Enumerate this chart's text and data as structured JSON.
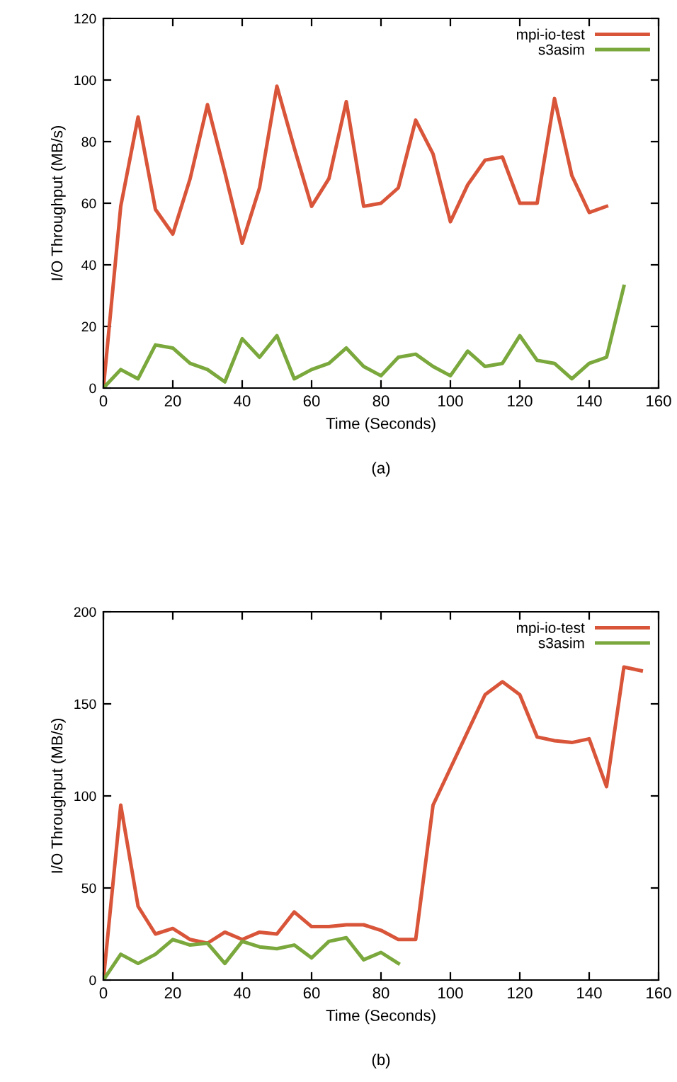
{
  "chart_data": [
    {
      "type": "line",
      "xlabel": "Time (Seconds)",
      "ylabel": "I/O Throughput (MB/s)",
      "annotations": [
        "(a)"
      ],
      "legend": "top right",
      "grid": false,
      "xlim": [
        0,
        160
      ],
      "ylim": [
        0,
        120
      ],
      "xticks": [
        0,
        20,
        40,
        60,
        80,
        100,
        120,
        140,
        160
      ],
      "yticks": [
        0,
        20,
        40,
        60,
        80,
        100,
        120
      ],
      "series": [
        {
          "name": "mpi-io-test",
          "color": "#d9553a",
          "x": [
            0,
            5,
            10,
            15,
            20,
            25,
            30,
            35,
            40,
            45,
            50,
            55,
            60,
            65,
            70,
            75,
            80,
            85,
            90,
            95,
            100,
            105,
            110,
            115,
            120,
            125,
            130,
            135,
            140,
            145
          ],
          "values": [
            0,
            59,
            88,
            58,
            50,
            68,
            92,
            70,
            47,
            65,
            98,
            78,
            59,
            68,
            93,
            59,
            60,
            65,
            87,
            76,
            54,
            66,
            74,
            75,
            60,
            60,
            94,
            69,
            57,
            59
          ]
        },
        {
          "name": "s3asim",
          "color": "#7aa83c",
          "x": [
            0,
            5,
            10,
            15,
            20,
            25,
            30,
            35,
            40,
            45,
            50,
            55,
            60,
            65,
            70,
            75,
            80,
            85,
            90,
            95,
            100,
            105,
            110,
            115,
            120,
            125,
            130,
            135,
            140,
            145,
            150
          ],
          "values": [
            0,
            6,
            3,
            14,
            13,
            8,
            6,
            2,
            16,
            10,
            17,
            3,
            6,
            8,
            13,
            7,
            4,
            10,
            11,
            7,
            4,
            12,
            7,
            8,
            17,
            9,
            8,
            3,
            8,
            10,
            33
          ]
        }
      ]
    },
    {
      "type": "line",
      "xlabel": "Time (Seconds)",
      "ylabel": "I/O Throughput (MB/s)",
      "annotations": [
        "(b)"
      ],
      "legend": "top right",
      "grid": false,
      "xlim": [
        0,
        160
      ],
      "ylim": [
        0,
        200
      ],
      "xticks": [
        0,
        20,
        40,
        60,
        80,
        100,
        120,
        140,
        160
      ],
      "yticks": [
        0,
        50,
        100,
        150,
        200
      ],
      "series": [
        {
          "name": "mpi-io-test",
          "color": "#d9553a",
          "x": [
            0,
            5,
            10,
            15,
            20,
            25,
            30,
            35,
            40,
            45,
            50,
            55,
            60,
            65,
            70,
            75,
            80,
            85,
            90,
            95,
            100,
            105,
            110,
            115,
            120,
            125,
            130,
            135,
            140,
            145,
            150,
            155
          ],
          "values": [
            0,
            95,
            40,
            25,
            28,
            22,
            20,
            26,
            22,
            26,
            25,
            37,
            29,
            29,
            30,
            30,
            27,
            22,
            22,
            95,
            115,
            135,
            155,
            162,
            155,
            132,
            130,
            129,
            131,
            105,
            170,
            168
          ]
        },
        {
          "name": "s3asim",
          "color": "#7aa83c",
          "x": [
            0,
            5,
            10,
            15,
            20,
            25,
            30,
            35,
            40,
            45,
            50,
            55,
            60,
            65,
            70,
            75,
            80,
            85
          ],
          "values": [
            0,
            14,
            9,
            14,
            22,
            19,
            20,
            9,
            21,
            18,
            17,
            19,
            12,
            21,
            23,
            11,
            15,
            9
          ]
        }
      ]
    }
  ]
}
